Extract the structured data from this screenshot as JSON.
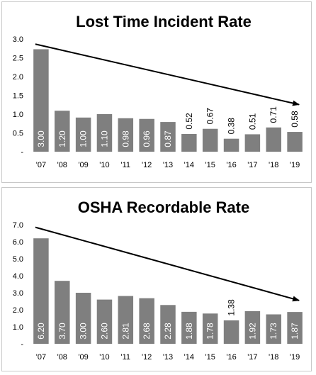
{
  "chart_data": [
    {
      "type": "bar",
      "title": "Lost Time Incident Rate",
      "categories": [
        "'07",
        "'08",
        "'09",
        "'10",
        "'11",
        "'12",
        "'13",
        "'14",
        "'15",
        "'16",
        "'17",
        "'18",
        "'19"
      ],
      "values": [
        3.0,
        1.2,
        1.0,
        1.1,
        0.98,
        0.96,
        0.87,
        0.52,
        0.67,
        0.38,
        0.51,
        0.71,
        0.58
      ],
      "value_labels": [
        "3.00",
        "1.20",
        "1.00",
        "1.10",
        "0.98",
        "0.96",
        "0.87",
        "0.52",
        "0.67",
        "0.38",
        "0.51",
        "0.71",
        "0.58"
      ],
      "y_tick_labels": [
        "-",
        "0.5",
        "1.0",
        "1.5",
        "2.0",
        "2.5",
        "3.0"
      ],
      "ylim": [
        0,
        3.3
      ],
      "trend_arrow": {
        "from": [
          0,
          3.15
        ],
        "to": [
          12,
          1.38
        ]
      },
      "grid": false,
      "bar_color": "#7f7f7f"
    },
    {
      "type": "bar",
      "title": "OSHA Recordable Rate",
      "categories": [
        "'07",
        "'08",
        "'09",
        "'10",
        "'11",
        "'12",
        "'13",
        "'14",
        "'15",
        "'16",
        "'17",
        "'18",
        "'19"
      ],
      "values": [
        6.2,
        3.7,
        3.0,
        2.6,
        2.81,
        2.68,
        2.28,
        1.88,
        1.78,
        1.38,
        1.92,
        1.73,
        1.87
      ],
      "value_labels": [
        "6.20",
        "3.70",
        "3.00",
        "2.60",
        "2.81",
        "2.68",
        "2.28",
        "1.88",
        "1.78",
        "1.38",
        "1.92",
        "1.73",
        "1.87"
      ],
      "y_tick_labels": [
        "-",
        "1.0",
        "2.0",
        "3.0",
        "4.0",
        "5.0",
        "6.0",
        "7.0"
      ],
      "ylim": [
        0,
        7.0
      ],
      "trend_arrow": {
        "from": [
          0,
          6.85
        ],
        "to": [
          12,
          2.55
        ]
      },
      "grid": false,
      "bar_color": "#7f7f7f"
    }
  ]
}
